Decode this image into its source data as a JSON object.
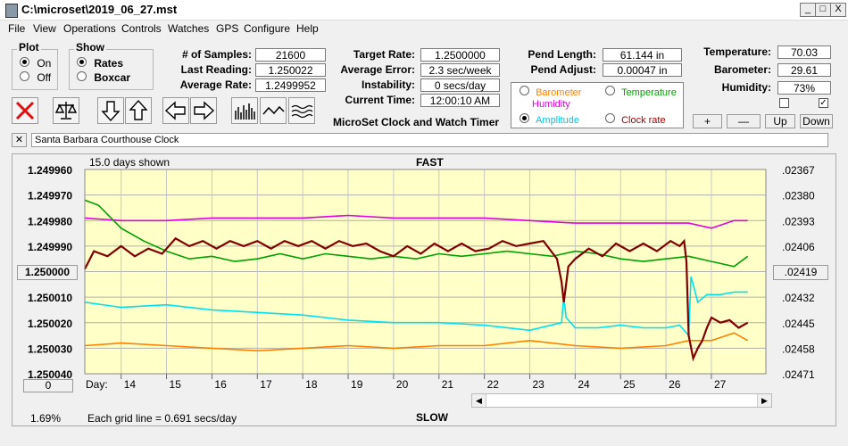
{
  "window": {
    "title": "C:\\microset\\2019_06_27.mst",
    "min": "_",
    "max": "□",
    "close": "X"
  },
  "menu": [
    "File",
    "View",
    "Operations",
    "Controls",
    "Watches",
    "GPS",
    "Configure",
    "Help"
  ],
  "plot_group": {
    "label": "Plot",
    "options": [
      "On",
      "Off"
    ],
    "selected": 0
  },
  "show_group": {
    "label": "Show",
    "options": [
      "Rates",
      "Boxcar"
    ],
    "selected": 0
  },
  "stats": {
    "samples_label": "# of Samples:",
    "samples": "21600",
    "last_reading_label": "Last Reading:",
    "last_reading": "1.250022",
    "average_rate_label": "Average Rate:",
    "average_rate": "1.2499952",
    "target_rate_label": "Target Rate:",
    "target_rate": "1.2500000",
    "average_error_label": "Average Error:",
    "average_error": "2.3 sec/week",
    "instability_label": "Instability:",
    "instability": "0 secs/day",
    "current_time_label": "Current Time:",
    "current_time": "12:00:10 AM",
    "app_name": "MicroSet Clock and Watch Timer",
    "pend_length_label": "Pend Length:",
    "pend_length": "61.144 in",
    "pend_adjust_label": "Pend Adjust:",
    "pend_adjust": "0.00047 in",
    "temperature_label": "Temperature:",
    "temperature": "70.03",
    "barometer_label": "Barometer:",
    "barometer": "29.61",
    "humidity_label": "Humidity:",
    "humidity": "73%"
  },
  "series_options": [
    {
      "label": "Barometer",
      "color": "#ff8000",
      "selected": false
    },
    {
      "label": "Temperature",
      "color": "#00a000",
      "selected": false
    },
    {
      "label": "Humidity",
      "color": "#e000e0",
      "selected": false
    },
    {
      "label": "Amplitude",
      "color": "#00c8e0",
      "selected": true
    },
    {
      "label": "Clock rate",
      "color": "#a00000",
      "selected": false
    }
  ],
  "checkboxes": [
    {
      "checked": false
    },
    {
      "checked": true
    }
  ],
  "small_buttons": [
    "+",
    "—",
    "Up",
    "Down"
  ],
  "toolbar_icons": [
    "cancel-x-icon",
    "balance-scale-icon",
    "arrow-down-icon",
    "arrow-up-icon",
    "arrow-left-icon",
    "arrow-right-icon",
    "bar-graph-icon",
    "wave-icon",
    "multi-wave-icon"
  ],
  "clock_name": "Santa Barbara Courthouse Clock",
  "clock_close": "✕",
  "chart_header": {
    "days_shown": "15.0 days shown",
    "fast": "FAST",
    "slow": "SLOW",
    "grid_note": "Each grid line = 0.691 secs/day",
    "percent": "1.69%",
    "day_label": "Day:"
  },
  "left_buttons": {
    "center_value": "1.250000",
    "bottom_value": "0"
  },
  "right_button": ".02419",
  "chart_data": {
    "type": "line",
    "xlabel": "Day:",
    "xlim": [
      13.2,
      28.2
    ],
    "x_ticks": [
      "14",
      "15",
      "16",
      "17",
      "18",
      "19",
      "20",
      "21",
      "22",
      "23",
      "24",
      "25",
      "26",
      "27"
    ],
    "y_left_ticks": [
      "1.249960",
      "1.249970",
      "1.249980",
      "1.249990",
      "1.250000",
      "1.250010",
      "1.250020",
      "1.250030",
      "1.250040"
    ],
    "y_left_range": [
      1.24996,
      1.25004
    ],
    "y_right_ticks": [
      ".02367",
      ".02380",
      ".02393",
      ".02406",
      ".02419",
      ".02432",
      ".02445",
      ".02458",
      ".02471"
    ],
    "plot_background": "#ffffc8",
    "series": [
      {
        "name": "Clock rate",
        "color": "#800000",
        "x": [
          13.2,
          13.4,
          13.7,
          14.0,
          14.3,
          14.6,
          14.9,
          15.2,
          15.5,
          15.8,
          16.1,
          16.4,
          16.7,
          17.0,
          17.3,
          17.6,
          17.9,
          18.2,
          18.5,
          18.8,
          19.1,
          19.4,
          19.7,
          20.0,
          20.3,
          20.6,
          20.9,
          21.2,
          21.5,
          21.8,
          22.1,
          22.4,
          22.7,
          23.0,
          23.3,
          23.6,
          23.7,
          23.75,
          23.8,
          23.85,
          24.0,
          24.3,
          24.6,
          24.9,
          25.2,
          25.5,
          25.8,
          26.1,
          26.3,
          26.4,
          26.45,
          26.5,
          26.6,
          26.7,
          26.8,
          26.9,
          27.0,
          27.2,
          27.4,
          27.6,
          27.8
        ],
        "y": [
          1.249999,
          1.249992,
          1.249994,
          1.24999,
          1.249994,
          1.249991,
          1.249993,
          1.249987,
          1.24999,
          1.249988,
          1.249991,
          1.249988,
          1.24999,
          1.249988,
          1.249991,
          1.249988,
          1.24999,
          1.249988,
          1.249991,
          1.249988,
          1.24999,
          1.249989,
          1.249992,
          1.249994,
          1.24999,
          1.249993,
          1.249989,
          1.249992,
          1.249989,
          1.249992,
          1.249991,
          1.249988,
          1.24999,
          1.249989,
          1.249988,
          1.249995,
          1.250004,
          1.250012,
          1.250005,
          1.249998,
          1.249995,
          1.249991,
          1.249994,
          1.249989,
          1.249992,
          1.249989,
          1.249992,
          1.249988,
          1.24999,
          1.249988,
          1.249996,
          1.250025,
          1.250034,
          1.25003,
          1.250027,
          1.250022,
          1.250018,
          1.25002,
          1.250019,
          1.250022,
          1.25002
        ]
      },
      {
        "name": "Temperature",
        "color": "#00a000",
        "x": [
          13.2,
          13.5,
          14.0,
          14.5,
          15.0,
          15.5,
          16.0,
          16.5,
          17.0,
          17.5,
          18.0,
          18.5,
          19.0,
          19.5,
          20.0,
          20.5,
          21.0,
          21.5,
          22.0,
          22.5,
          23.0,
          23.5,
          24.0,
          24.5,
          25.0,
          25.5,
          26.0,
          26.5,
          27.0,
          27.5,
          27.8
        ],
        "y": [
          1.249972,
          1.249974,
          1.249983,
          1.249988,
          1.249992,
          1.249995,
          1.249994,
          1.249996,
          1.249995,
          1.249993,
          1.249995,
          1.249993,
          1.249994,
          1.249995,
          1.249994,
          1.249995,
          1.249993,
          1.249994,
          1.249993,
          1.249992,
          1.249993,
          1.249994,
          1.249992,
          1.249993,
          1.249995,
          1.249996,
          1.249995,
          1.249994,
          1.249996,
          1.249998,
          1.249994
        ]
      },
      {
        "name": "Humidity",
        "color": "#e000e0",
        "x": [
          13.2,
          14.0,
          15.0,
          16.0,
          17.0,
          18.0,
          19.0,
          20.0,
          21.0,
          22.0,
          23.0,
          24.0,
          25.0,
          26.0,
          26.5,
          27.0,
          27.5,
          27.8
        ],
        "y": [
          1.249979,
          1.24998,
          1.24998,
          1.249979,
          1.249979,
          1.249979,
          1.249978,
          1.249979,
          1.249979,
          1.249979,
          1.24998,
          1.249981,
          1.249981,
          1.249981,
          1.249981,
          1.249983,
          1.24998,
          1.24998
        ]
      },
      {
        "name": "Amplitude",
        "color": "#00e0f0",
        "x": [
          13.2,
          14.0,
          15.0,
          16.0,
          17.0,
          18.0,
          19.0,
          20.0,
          21.0,
          22.0,
          23.0,
          23.7,
          23.75,
          23.8,
          24.0,
          24.5,
          25.0,
          25.5,
          26.0,
          26.3,
          26.5,
          26.55,
          26.6,
          26.7,
          26.9,
          27.2,
          27.5,
          27.8
        ],
        "y": [
          1.250012,
          1.250014,
          1.250013,
          1.250015,
          1.250016,
          1.250017,
          1.250019,
          1.25002,
          1.25002,
          1.250021,
          1.250023,
          1.25002,
          1.25001,
          1.250018,
          1.250022,
          1.250022,
          1.250021,
          1.250022,
          1.250022,
          1.250021,
          1.250025,
          1.250002,
          1.250005,
          1.250012,
          1.250009,
          1.250009,
          1.250008,
          1.250008
        ]
      },
      {
        "name": "Barometer",
        "color": "#ff8000",
        "x": [
          13.2,
          14.0,
          15.0,
          16.0,
          17.0,
          18.0,
          19.0,
          20.0,
          21.0,
          22.0,
          23.0,
          24.0,
          25.0,
          26.0,
          26.5,
          27.0,
          27.5,
          27.8
        ],
        "y": [
          1.250029,
          1.250028,
          1.250029,
          1.25003,
          1.250031,
          1.25003,
          1.250029,
          1.25003,
          1.250029,
          1.250029,
          1.250027,
          1.250029,
          1.25003,
          1.250029,
          1.250027,
          1.250027,
          1.250024,
          1.250027
        ]
      }
    ]
  }
}
